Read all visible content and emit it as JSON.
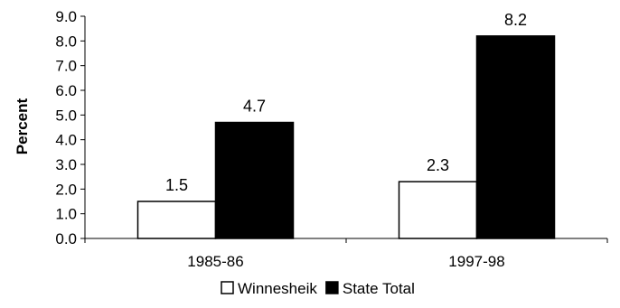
{
  "chart_data": {
    "type": "bar",
    "title": "",
    "xlabel": "",
    "ylabel": "Percent",
    "ylim": [
      0,
      9
    ],
    "ytick_labels": [
      "0.0",
      "1.0",
      "2.0",
      "3.0",
      "4.0",
      "5.0",
      "6.0",
      "7.0",
      "8.0",
      "9.0"
    ],
    "categories": [
      "1985-86",
      "1997-98"
    ],
    "series": [
      {
        "name": "Winnesheik",
        "values": [
          1.5,
          2.3
        ],
        "value_labels": [
          "1.5",
          "2.3"
        ],
        "fill": "#ffffff"
      },
      {
        "name": "State Total",
        "values": [
          4.7,
          8.2
        ],
        "value_labels": [
          "4.7",
          "8.2"
        ],
        "fill": "#000000"
      }
    ],
    "grid": false,
    "legend_position": "bottom"
  }
}
